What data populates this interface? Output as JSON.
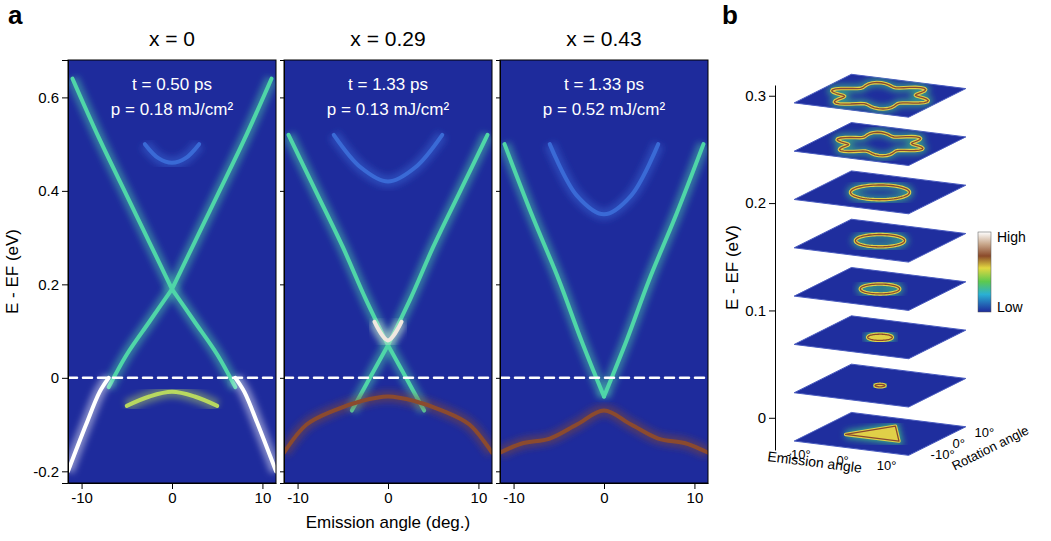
{
  "chart_data": [
    {
      "type": "line",
      "panel_label": "a",
      "title": "x = 0",
      "annotations": [
        "t = 0.50 ps",
        "p = 0.18 mJ/cm²"
      ],
      "y_label": "E - EF (eV)",
      "xlim": [
        -11.5,
        11.5
      ],
      "ylim": [
        -0.225,
        0.68
      ],
      "xticks": [
        -10,
        0,
        10
      ],
      "yticks": [
        -0.2,
        0,
        0.2,
        0.4,
        0.6
      ],
      "series": [
        {
          "color": "#4fd6a8",
          "x": [
            -11,
            -8,
            -5,
            -2.5,
            0
          ],
          "values": [
            0.64,
            0.51,
            0.39,
            0.29,
            0.19
          ]
        },
        {
          "color": "#4fd6a8",
          "x": [
            0,
            2.5,
            5,
            8,
            11
          ],
          "values": [
            0.19,
            0.29,
            0.39,
            0.51,
            0.64
          ]
        },
        {
          "color": "#4fd6a8",
          "x": [
            -7,
            -5,
            -2.5,
            0
          ],
          "values": [
            -0.02,
            0.05,
            0.12,
            0.19
          ]
        },
        {
          "color": "#4fd6a8",
          "x": [
            0,
            2.5,
            5,
            7
          ],
          "values": [
            0.19,
            0.12,
            0.05,
            -0.02
          ]
        },
        {
          "color": "#ffffff",
          "x": [
            -11.5,
            -9.5,
            -8,
            -7
          ],
          "values": [
            -0.2,
            -0.1,
            -0.03,
            0.0
          ]
        },
        {
          "color": "#ffffff",
          "x": [
            7,
            8,
            9.5,
            11.5
          ],
          "values": [
            0.0,
            -0.03,
            -0.1,
            -0.2
          ]
        },
        {
          "color": "#b8d860",
          "x": [
            -5,
            -2.5,
            0,
            2.5,
            5
          ],
          "values": [
            -0.06,
            -0.04,
            -0.03,
            -0.04,
            -0.06
          ]
        },
        {
          "color": "#3a6ad6",
          "x": [
            -3,
            -1.5,
            0,
            1.5,
            3
          ],
          "values": [
            0.5,
            0.47,
            0.46,
            0.47,
            0.5
          ]
        },
        {
          "color": "#ffffff",
          "line_style": "dashed",
          "x": [
            -11.5,
            11.5
          ],
          "values": [
            0,
            0
          ]
        }
      ]
    },
    {
      "type": "line",
      "title": "x = 0.29",
      "annotations": [
        "t = 1.33 ps",
        "p = 0.13 mJ/cm²"
      ],
      "x_label": "Emission angle (deg.)",
      "tick_labels": "x",
      "xlim": [
        -11.5,
        11.5
      ],
      "ylim": [
        -0.225,
        0.68
      ],
      "xticks": [
        -10,
        0,
        10
      ],
      "yticks": [
        -0.2,
        0,
        0.2,
        0.4,
        0.6
      ],
      "series": [
        {
          "color": "#4fd6a8",
          "x": [
            -11,
            -8,
            -5,
            -2.5,
            0
          ],
          "values": [
            0.52,
            0.4,
            0.28,
            0.17,
            0.07
          ]
        },
        {
          "color": "#4fd6a8",
          "x": [
            0,
            2.5,
            5,
            8,
            11
          ],
          "values": [
            0.07,
            0.17,
            0.28,
            0.4,
            0.52
          ]
        },
        {
          "color": "#4fd6a8",
          "x": [
            -4,
            -2,
            0
          ],
          "values": [
            -0.07,
            0.0,
            0.07
          ]
        },
        {
          "color": "#4fd6a8",
          "x": [
            0,
            2,
            4
          ],
          "values": [
            0.07,
            0.0,
            -0.07
          ]
        },
        {
          "color": "#f0e8e0",
          "x": [
            -1.5,
            0,
            1.5
          ],
          "values": [
            0.12,
            0.08,
            0.12
          ]
        },
        {
          "color": "#8b4a2e",
          "x": [
            -11.5,
            -9,
            -6,
            -3,
            0,
            3,
            6,
            9,
            11.5
          ],
          "values": [
            -0.16,
            -0.1,
            -0.07,
            -0.05,
            -0.04,
            -0.05,
            -0.07,
            -0.1,
            -0.16
          ]
        },
        {
          "color": "#3a6ad6",
          "x": [
            -6,
            -3,
            0,
            3,
            6
          ],
          "values": [
            0.52,
            0.45,
            0.42,
            0.45,
            0.52
          ]
        },
        {
          "color": "#ffffff",
          "line_style": "dashed",
          "x": [
            -11.5,
            11.5
          ],
          "values": [
            0,
            0
          ]
        }
      ]
    },
    {
      "type": "line",
      "title": "x = 0.43",
      "annotations": [
        "t = 1.33 ps",
        "p = 0.52 mJ/cm²"
      ],
      "tick_labels": "x",
      "xlim": [
        -11.5,
        11.5
      ],
      "ylim": [
        -0.225,
        0.68
      ],
      "xticks": [
        -10,
        0,
        10
      ],
      "yticks": [
        -0.2,
        0,
        0.2,
        0.4,
        0.6
      ],
      "series": [
        {
          "color": "#4fd6a8",
          "x": [
            -11,
            -8,
            -5,
            -2.5,
            0
          ],
          "values": [
            0.5,
            0.35,
            0.21,
            0.08,
            -0.04
          ]
        },
        {
          "color": "#4fd6a8",
          "x": [
            0,
            2.5,
            5,
            8,
            11
          ],
          "values": [
            -0.04,
            0.08,
            0.21,
            0.35,
            0.5
          ]
        },
        {
          "color": "#8b4a2e",
          "x": [
            -11.5,
            -9,
            -6,
            -3,
            0,
            3,
            6,
            9,
            11.5
          ],
          "values": [
            -0.16,
            -0.14,
            -0.13,
            -0.1,
            -0.07,
            -0.1,
            -0.13,
            -0.14,
            -0.16
          ]
        },
        {
          "color": "#3a6ad6",
          "x": [
            -6,
            -3,
            0,
            3,
            6
          ],
          "values": [
            0.5,
            0.39,
            0.35,
            0.39,
            0.5
          ]
        },
        {
          "color": "#ffffff",
          "line_style": "dashed",
          "x": [
            -11.5,
            11.5
          ],
          "values": [
            0,
            0
          ]
        }
      ]
    },
    {
      "type": "contour_stack",
      "panel_label": "b",
      "y_label": "E - EF (eV)",
      "ylim": [
        -0.03,
        0.31
      ],
      "yticks": [
        0,
        0.1,
        0.2,
        0.3
      ],
      "x_label": "Emission angle",
      "z_label": "Rotation angle",
      "xlim": [
        -13,
        13
      ],
      "zlim": [
        -13,
        13
      ],
      "xticks": [
        {
          "value": -10,
          "label": "-10°"
        },
        {
          "value": 0,
          "label": "0°"
        },
        {
          "value": 10,
          "label": "10°"
        }
      ],
      "zticks": [
        {
          "value": -10,
          "label": "-10°"
        },
        {
          "value": 0,
          "label": "0°"
        },
        {
          "value": 10,
          "label": "10°"
        }
      ],
      "colorbar_labels": [
        "High",
        "Low"
      ],
      "slices": [
        {
          "energy": 0.3,
          "radius": 9,
          "marker": "star"
        },
        {
          "energy": 0.255,
          "radius": 8,
          "marker": "star"
        },
        {
          "energy": 0.21,
          "radius": 6,
          "marker": "circle"
        },
        {
          "energy": 0.165,
          "radius": 5,
          "marker": "circle"
        },
        {
          "energy": 0.12,
          "radius": 4,
          "marker": "circle"
        },
        {
          "energy": 0.075,
          "radius": 2.5,
          "marker": "dot"
        },
        {
          "energy": 0.03,
          "radius": 1,
          "marker": "dot"
        },
        {
          "energy": -0.015,
          "radius": 7,
          "marker": "triangle"
        }
      ]
    }
  ]
}
